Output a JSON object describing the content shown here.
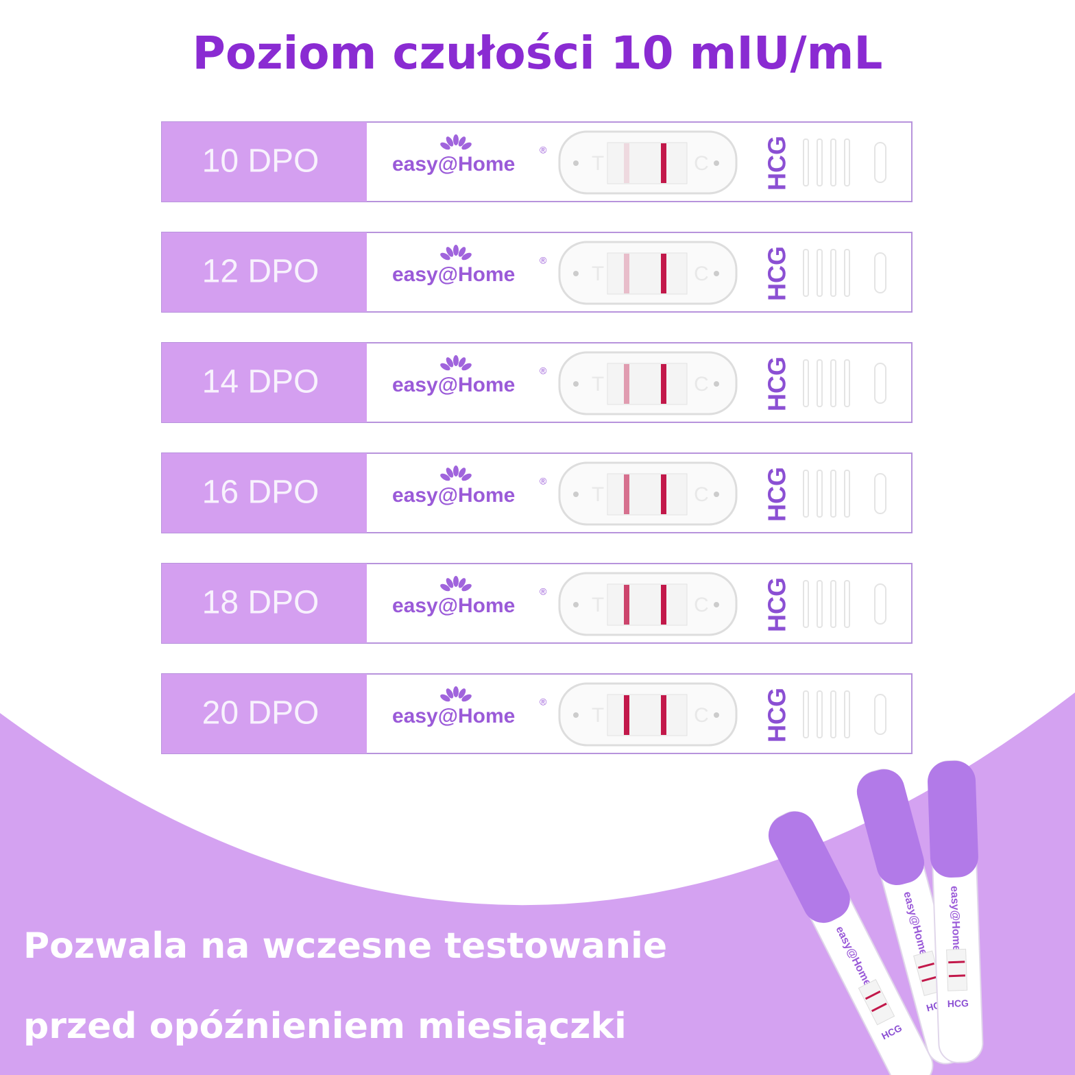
{
  "title": "Poziom czułości 10 mIU/mL",
  "strips": [
    {
      "label": "10 DPO"
    },
    {
      "label": "12 DPO"
    },
    {
      "label": "14 DPO"
    },
    {
      "label": "16 DPO"
    },
    {
      "label": "18 DPO"
    },
    {
      "label": "20 DPO"
    }
  ],
  "brand": "easy@Home",
  "registered": "®",
  "test_mark": "T",
  "control_mark": "C",
  "strip_label": "HCG",
  "footer": {
    "lines": [
      "Pozwala na wczesne testowanie",
      "przed opóźnieniem miesiączki"
    ]
  }
}
